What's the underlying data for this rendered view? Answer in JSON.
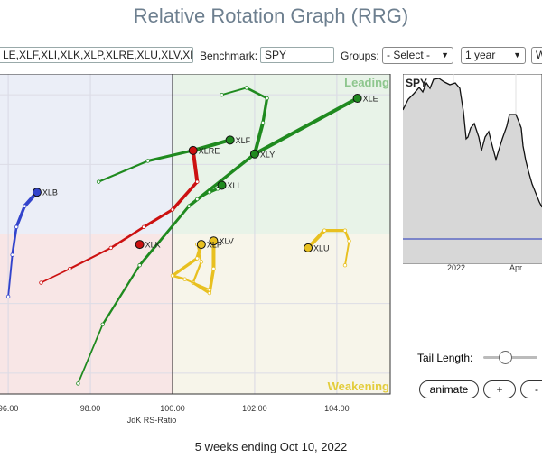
{
  "page": {
    "title": "Relative Rotation Graph (RRG)",
    "footer": "5 weeks ending Oct 10, 2022"
  },
  "toolbar": {
    "symbols_value": "LE,XLF,XLI,XLK,XLP,XLRE,XLU,XLV,XL",
    "benchmark_label": "Benchmark:",
    "benchmark_value": "SPY",
    "groups_label": "Groups:",
    "groups_value": "- Select -",
    "period_value": "1 year",
    "cut_off_value": "W"
  },
  "chart_data": {
    "type": "scatter",
    "xlabel": "JdK RS-Ratio",
    "xticks": [
      "96.00",
      "98.00",
      "100.00",
      "102.00",
      "104.00"
    ],
    "xlim": [
      95.8,
      105.3
    ],
    "ylim": [
      95.4,
      104.6
    ],
    "quadrants": {
      "leading": "Leading",
      "weakening": "Weakening"
    },
    "quadrant_colors": {
      "leading": "#e8f3e8",
      "weakening": "#f7f5ea",
      "lagging": "#f8e6e6",
      "improving": "#ebeef7"
    },
    "series": [
      {
        "name": "XLE",
        "color": "#1f8a1f",
        "points": [
          [
            97.7,
            95.7
          ],
          [
            98.3,
            97.4
          ],
          [
            99.2,
            99.1
          ],
          [
            100.4,
            100.8
          ],
          [
            102.0,
            102.3
          ],
          [
            104.5,
            103.9
          ]
        ]
      },
      {
        "name": "XLF",
        "color": "#1f8a1f",
        "points": [
          [
            98.2,
            101.5
          ],
          [
            99.4,
            102.1
          ],
          [
            100.5,
            102.4
          ],
          [
            101.4,
            102.7
          ]
        ]
      },
      {
        "name": "XLY",
        "color": "#1f8a1f",
        "points": [
          [
            101.2,
            104.0
          ],
          [
            101.8,
            104.2
          ],
          [
            102.3,
            103.9
          ],
          [
            102.2,
            103.2
          ],
          [
            102.0,
            102.3
          ]
        ]
      },
      {
        "name": "XLI",
        "color": "#1f8a1f",
        "points": [
          [
            100.6,
            101.0
          ],
          [
            100.9,
            101.2
          ],
          [
            101.1,
            101.3
          ],
          [
            101.2,
            101.4
          ]
        ]
      },
      {
        "name": "XLB",
        "color": "#3344cc",
        "points": [
          [
            96.0,
            98.2
          ],
          [
            96.1,
            99.4
          ],
          [
            96.2,
            100.2
          ],
          [
            96.4,
            100.8
          ],
          [
            96.7,
            101.2
          ]
        ]
      },
      {
        "name": "XLRE",
        "color": "#cc1111",
        "points": [
          [
            96.8,
            98.6
          ],
          [
            97.5,
            99.0
          ],
          [
            98.5,
            99.6
          ],
          [
            99.3,
            100.2
          ],
          [
            100.0,
            100.7
          ],
          [
            100.6,
            101.5
          ],
          [
            100.5,
            102.4
          ]
        ]
      },
      {
        "name": "XLK",
        "color": "#cc1111",
        "points": [
          [
            99.2,
            99.7
          ]
        ]
      },
      {
        "name": "XLV",
        "color": "#e8c020",
        "points": [
          [
            100.6,
            99.7
          ],
          [
            100.7,
            99.2
          ],
          [
            100.5,
            98.6
          ],
          [
            100.9,
            98.3
          ],
          [
            101.0,
            99.0
          ],
          [
            101.0,
            99.8
          ]
        ]
      },
      {
        "name": "XLP",
        "color": "#e8c020",
        "points": [
          [
            100.9,
            98.4
          ],
          [
            100.3,
            98.7
          ],
          [
            100.0,
            98.8
          ],
          [
            100.6,
            99.3
          ],
          [
            100.7,
            99.7
          ]
        ]
      },
      {
        "name": "XLU",
        "color": "#e8c020",
        "points": [
          [
            104.2,
            99.1
          ],
          [
            104.3,
            99.8
          ],
          [
            104.2,
            100.1
          ],
          [
            103.7,
            100.1
          ],
          [
            103.3,
            99.6
          ]
        ]
      }
    ]
  },
  "spy_chart": {
    "label": "SPY",
    "xticks": [
      "2022",
      "Apr"
    ],
    "line_color": "#111111",
    "fill_color": "#d7d7d7",
    "ref_color": "#2233bb"
  },
  "controls": {
    "tail_length_label": "Tail Length:",
    "animate_label": "animate",
    "plus_label": "+",
    "minus_label": "-"
  }
}
